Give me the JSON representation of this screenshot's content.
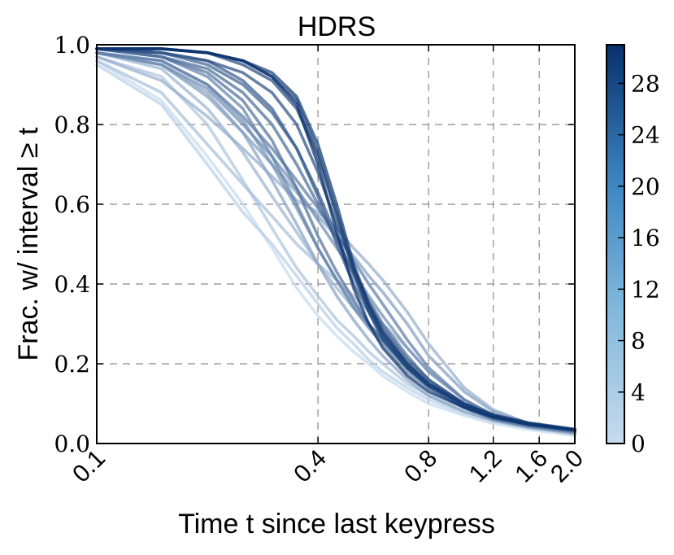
{
  "chart_data": {
    "type": "line",
    "title": "HDRS",
    "xlabel": "Time t since last keypress",
    "ylabel": "Frac. w/ interval ≥ t",
    "x_scale": "log",
    "xlim": [
      0.1,
      2.0
    ],
    "ylim": [
      0.0,
      1.0
    ],
    "xticks": [
      0.1,
      0.4,
      0.8,
      1.2,
      1.6,
      2.0
    ],
    "xtick_labels": [
      "0.1",
      "0.4",
      "0.8",
      "1.2",
      "1.6",
      "2.0"
    ],
    "yticks": [
      0.0,
      0.2,
      0.4,
      0.6,
      0.8,
      1.0
    ],
    "ytick_labels": [
      "0.0",
      "0.2",
      "0.4",
      "0.6",
      "0.8",
      "1.0"
    ],
    "grid": true,
    "colorbar": {
      "range": [
        0,
        31
      ],
      "ticks": [
        0,
        4,
        8,
        12,
        16,
        20,
        24,
        28
      ],
      "tick_labels": [
        "0",
        "4",
        "8",
        "12",
        "16",
        "20",
        "24",
        "28"
      ],
      "colormap": "Blues",
      "color_low": "#c6dbef",
      "color_high": "#08306b"
    },
    "x": [
      0.1,
      0.15,
      0.2,
      0.25,
      0.3,
      0.35,
      0.4,
      0.45,
      0.5,
      0.55,
      0.6,
      0.7,
      0.8,
      1.0,
      1.2,
      1.5,
      2.0
    ],
    "series": [
      {
        "score": 0,
        "values": [
          0.96,
          0.86,
          0.72,
          0.6,
          0.49,
          0.39,
          0.32,
          0.27,
          0.23,
          0.2,
          0.17,
          0.13,
          0.1,
          0.07,
          0.05,
          0.035,
          0.02
        ]
      },
      {
        "score": 2,
        "values": [
          0.95,
          0.85,
          0.7,
          0.58,
          0.5,
          0.42,
          0.35,
          0.29,
          0.25,
          0.21,
          0.18,
          0.14,
          0.11,
          0.075,
          0.055,
          0.04,
          0.022
        ]
      },
      {
        "score": 4,
        "values": [
          0.97,
          0.92,
          0.8,
          0.66,
          0.54,
          0.44,
          0.37,
          0.31,
          0.27,
          0.23,
          0.2,
          0.15,
          0.12,
          0.08,
          0.06,
          0.04,
          0.025
        ]
      },
      {
        "score": 5,
        "values": [
          0.96,
          0.88,
          0.75,
          0.65,
          0.57,
          0.5,
          0.45,
          0.41,
          0.37,
          0.33,
          0.3,
          0.24,
          0.18,
          0.11,
          0.07,
          0.045,
          0.025
        ]
      },
      {
        "score": 7,
        "values": [
          0.98,
          0.94,
          0.84,
          0.73,
          0.62,
          0.53,
          0.45,
          0.39,
          0.34,
          0.3,
          0.26,
          0.2,
          0.15,
          0.095,
          0.065,
          0.045,
          0.027
        ]
      },
      {
        "score": 8,
        "values": [
          0.97,
          0.91,
          0.82,
          0.74,
          0.67,
          0.61,
          0.58,
          0.54,
          0.49,
          0.45,
          0.41,
          0.33,
          0.25,
          0.14,
          0.085,
          0.05,
          0.03
        ]
      },
      {
        "score": 10,
        "values": [
          0.98,
          0.95,
          0.88,
          0.78,
          0.66,
          0.55,
          0.45,
          0.37,
          0.31,
          0.26,
          0.22,
          0.16,
          0.12,
          0.08,
          0.058,
          0.04,
          0.026
        ]
      },
      {
        "score": 11,
        "values": [
          0.98,
          0.95,
          0.87,
          0.78,
          0.7,
          0.63,
          0.57,
          0.52,
          0.47,
          0.42,
          0.38,
          0.3,
          0.22,
          0.13,
          0.08,
          0.05,
          0.03
        ]
      },
      {
        "score": 13,
        "values": [
          0.98,
          0.96,
          0.9,
          0.81,
          0.7,
          0.59,
          0.49,
          0.41,
          0.35,
          0.3,
          0.26,
          0.19,
          0.14,
          0.09,
          0.06,
          0.042,
          0.028
        ]
      },
      {
        "score": 14,
        "values": [
          0.98,
          0.95,
          0.89,
          0.8,
          0.72,
          0.64,
          0.56,
          0.49,
          0.43,
          0.37,
          0.32,
          0.24,
          0.18,
          0.11,
          0.07,
          0.046,
          0.03
        ]
      },
      {
        "score": 16,
        "values": [
          0.99,
          0.97,
          0.92,
          0.84,
          0.72,
          0.6,
          0.49,
          0.41,
          0.34,
          0.29,
          0.25,
          0.18,
          0.14,
          0.09,
          0.062,
          0.044,
          0.03
        ]
      },
      {
        "score": 17,
        "values": [
          0.98,
          0.96,
          0.9,
          0.82,
          0.74,
          0.66,
          0.59,
          0.52,
          0.46,
          0.4,
          0.35,
          0.26,
          0.19,
          0.11,
          0.072,
          0.048,
          0.032
        ]
      },
      {
        "score": 19,
        "values": [
          0.99,
          0.97,
          0.93,
          0.86,
          0.76,
          0.64,
          0.52,
          0.43,
          0.36,
          0.3,
          0.26,
          0.19,
          0.14,
          0.09,
          0.062,
          0.045,
          0.03
        ]
      },
      {
        "score": 20,
        "values": [
          0.99,
          0.97,
          0.94,
          0.88,
          0.8,
          0.7,
          0.6,
          0.51,
          0.43,
          0.36,
          0.3,
          0.22,
          0.16,
          0.1,
          0.068,
          0.047,
          0.032
        ]
      },
      {
        "score": 22,
        "values": [
          0.99,
          0.98,
          0.95,
          0.9,
          0.83,
          0.74,
          0.63,
          0.52,
          0.42,
          0.34,
          0.28,
          0.2,
          0.15,
          0.095,
          0.066,
          0.047,
          0.032
        ]
      },
      {
        "score": 23,
        "values": [
          0.99,
          0.98,
          0.96,
          0.91,
          0.84,
          0.74,
          0.62,
          0.5,
          0.4,
          0.33,
          0.27,
          0.2,
          0.15,
          0.095,
          0.066,
          0.047,
          0.033
        ]
      },
      {
        "score": 25,
        "values": [
          0.99,
          0.98,
          0.96,
          0.93,
          0.88,
          0.8,
          0.68,
          0.55,
          0.44,
          0.35,
          0.29,
          0.21,
          0.16,
          0.1,
          0.07,
          0.05,
          0.034
        ]
      },
      {
        "score": 26,
        "values": [
          0.99,
          0.99,
          0.98,
          0.95,
          0.91,
          0.84,
          0.72,
          0.57,
          0.43,
          0.33,
          0.26,
          0.19,
          0.145,
          0.095,
          0.068,
          0.05,
          0.034
        ]
      },
      {
        "score": 28,
        "values": [
          0.99,
          0.99,
          0.98,
          0.96,
          0.92,
          0.86,
          0.73,
          0.58,
          0.44,
          0.34,
          0.27,
          0.19,
          0.145,
          0.097,
          0.07,
          0.05,
          0.035
        ]
      },
      {
        "score": 29,
        "values": [
          0.99,
          0.99,
          0.98,
          0.96,
          0.93,
          0.87,
          0.75,
          0.6,
          0.45,
          0.35,
          0.28,
          0.2,
          0.15,
          0.1,
          0.072,
          0.052,
          0.036
        ]
      },
      {
        "score": 31,
        "values": [
          0.99,
          0.99,
          0.98,
          0.96,
          0.92,
          0.85,
          0.7,
          0.53,
          0.39,
          0.3,
          0.24,
          0.17,
          0.13,
          0.09,
          0.066,
          0.048,
          0.034
        ]
      }
    ]
  }
}
